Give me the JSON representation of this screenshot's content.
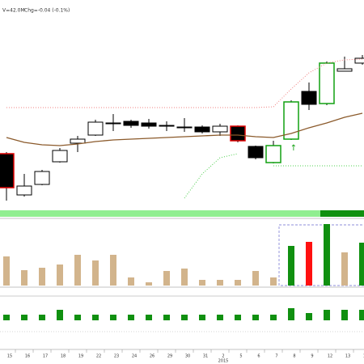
{
  "chart_data": {
    "type": "candlestick",
    "header": [
      "V=42.0M",
      "Chg=-0.04 (-0.1%)"
    ],
    "categories": [
      "15",
      "16",
      "17",
      "18",
      "19",
      "22",
      "23",
      "24",
      "26",
      "29",
      "30",
      "31",
      "2",
      "5",
      "6",
      "7",
      "8",
      "9",
      "12",
      "13",
      "14"
    ],
    "year_label": "2015",
    "open": [
      70,
      19,
      32,
      60,
      83,
      93,
      108,
      110,
      108,
      105,
      103,
      103,
      97,
      104,
      79,
      59,
      88,
      147,
      132,
      172,
      182
    ],
    "high": [
      72,
      45,
      50,
      77,
      92,
      112,
      119,
      112,
      113,
      110,
      114,
      105,
      107,
      105,
      80,
      86,
      136,
      158,
      184,
      190,
      192
    ],
    "low": [
      12,
      17,
      31,
      59,
      72,
      92,
      98,
      102,
      101,
      98,
      97,
      95,
      92,
      84,
      63,
      58,
      87,
      124,
      130,
      172,
      180
    ],
    "close": [
      28,
      30,
      48,
      74,
      88,
      109,
      108,
      105,
      104,
      105,
      103,
      97,
      104,
      86,
      65,
      80,
      134,
      131,
      182,
      175,
      188
    ],
    "edge_colors": [
      "#e00000",
      "#000000",
      "#000000",
      "#000000",
      "#000000",
      "#000000",
      "#000000",
      "#000000",
      "#000000",
      "#000000",
      "#000000",
      "#000000",
      "#000000",
      "#e00000",
      "#000000",
      "#10a010",
      "#10a010",
      "#000000",
      "#10a010",
      "#000000",
      "#000000"
    ],
    "ylim": [
      0,
      260
    ],
    "lines": [
      {
        "color": "#8b5a2b",
        "style": "solid",
        "values": [
          90,
          84,
          81,
          80,
          82,
          85,
          87,
          88,
          89,
          90,
          91,
          92,
          93,
          93,
          91,
          90,
          95,
          102,
          108,
          115,
          120
        ]
      },
      {
        "color": "#f08080",
        "style": "dotted",
        "values": [
          127,
          127,
          127,
          127,
          127,
          127,
          127,
          127,
          127,
          127,
          127,
          127,
          127,
          127,
          127,
          128,
          150,
          170,
          182,
          186,
          187
        ]
      },
      {
        "color": "#50d050",
        "style": "dotted",
        "values": [
          null,
          null,
          null,
          null,
          null,
          null,
          null,
          null,
          null,
          null,
          15,
          45,
          65,
          70,
          null,
          55,
          55,
          55,
          55,
          55,
          55
        ]
      }
    ],
    "volume": {
      "values": [
        36,
        19,
        22,
        26,
        38,
        31,
        38,
        10,
        4,
        18,
        21,
        7,
        7,
        7,
        18,
        10,
        49,
        54,
        76,
        41,
        53
      ],
      "colors": [
        "#d2b48c",
        "#d2b48c",
        "#d2b48c",
        "#d2b48c",
        "#d2b48c",
        "#d2b48c",
        "#d2b48c",
        "#d2b48c",
        "#d2b48c",
        "#d2b48c",
        "#d2b48c",
        "#d2b48c",
        "#d2b48c",
        "#d2b48c",
        "#d2b48c",
        "#d2b48c",
        "#109010",
        "#ff1010",
        "#109010",
        "#d2b48c",
        "#109010"
      ],
      "ylim": [
        0,
        78
      ]
    },
    "indicator": {
      "values": [
        7,
        7,
        7,
        13,
        7,
        7,
        7,
        7,
        7,
        7,
        7,
        7,
        7,
        7,
        7,
        7,
        15,
        9,
        13,
        13,
        13
      ],
      "color": "#109010",
      "ylim": [
        0,
        30
      ]
    }
  }
}
